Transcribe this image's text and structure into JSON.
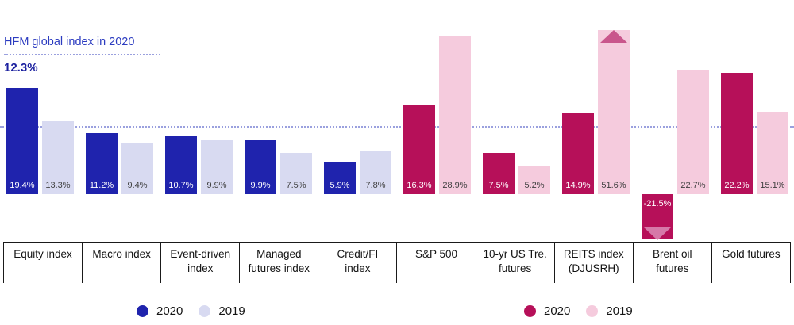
{
  "annotation": {
    "label": "HFM global index in 2020",
    "value": "12.3%"
  },
  "legends": [
    {
      "name": "hedge",
      "items": [
        {
          "label": "2020",
          "color": "#1f23ad"
        },
        {
          "label": "2019",
          "color": "#d8daf1"
        }
      ]
    },
    {
      "name": "market",
      "items": [
        {
          "label": "2020",
          "color": "#b61059"
        },
        {
          "label": "2019",
          "color": "#f5cbdd"
        }
      ]
    }
  ],
  "chart_data": {
    "type": "bar",
    "unit": "%",
    "categories": [
      "Equity index",
      "Macro index",
      "Event-driven index",
      "Managed futures index",
      "Credit/FI index",
      "S&P 500",
      "10-yr US Tre. futures",
      "REITS index (DJUSRH)",
      "Brent oil futures",
      "Gold futures"
    ],
    "series": [
      {
        "name": "2020",
        "values": [
          19.4,
          11.2,
          10.7,
          9.9,
          5.9,
          16.3,
          7.5,
          14.9,
          -21.5,
          22.2
        ],
        "labels": [
          "19.4%",
          "11.2%",
          "10.7%",
          "9.9%",
          "5.9%",
          "16.3%",
          "7.5%",
          "14.9%",
          "-21.5%",
          "22.2%"
        ]
      },
      {
        "name": "2019",
        "values": [
          13.3,
          9.4,
          9.9,
          7.5,
          7.8,
          28.9,
          5.2,
          51.6,
          22.7,
          15.1
        ],
        "labels": [
          "13.3%",
          "9.4%",
          "9.9%",
          "7.5%",
          "7.8%",
          "28.9%",
          "5.2%",
          "51.6%",
          "22.7%",
          "15.1%"
        ]
      }
    ],
    "group_palette": [
      "hedge",
      "hedge",
      "hedge",
      "hedge",
      "hedge",
      "market",
      "market",
      "market",
      "market",
      "market"
    ],
    "reference_line": {
      "value": 12.3,
      "label": "12.3%",
      "title": "HFM global index in 2020"
    },
    "truncated_bars": [
      {
        "series": "2019",
        "category": "REITS index (DJUSRH)",
        "direction": "up"
      },
      {
        "series": "2020",
        "category": "Brent oil futures",
        "direction": "down"
      }
    ],
    "ylim": [
      -25,
      55
    ],
    "display_clip": {
      "max": 30,
      "min": -8.3
    },
    "grid": false,
    "legend_position": "bottom",
    "colors": {
      "hedge_2020": "#1f23ad",
      "hedge_2019": "#d8daf1",
      "market_2020": "#b61059",
      "market_2019": "#f5cbdd",
      "truncation_up": "#c9568c",
      "truncation_down": "#d678a8",
      "reference_line": "#9aa0de",
      "axis": "#1a1a1a"
    }
  }
}
